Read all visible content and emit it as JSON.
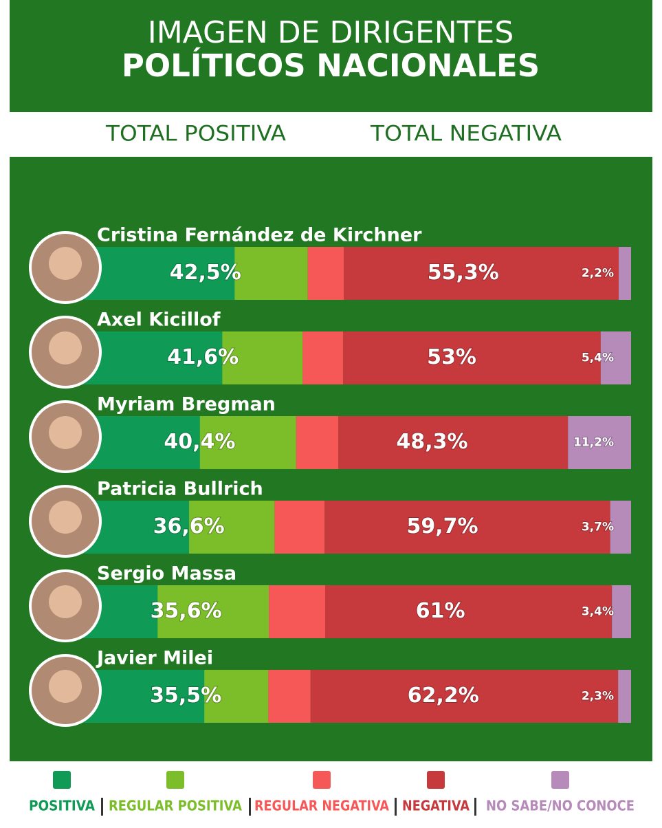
{
  "chart_data": {
    "type": "stacked-bar-horizontal",
    "title": "IMAGEN DE DIRIGENTES",
    "subtitle": "POLÍTICOS NACIONALES",
    "headers": [
      "TOTAL POSITIVA",
      "TOTAL NEGATIVA"
    ],
    "categories": [
      "Cristina Fernández de Kirchner",
      "Axel Kicillof",
      "Myriam Bregman",
      "Patricia Bullrich",
      "Sergio Massa",
      "Javier Milei"
    ],
    "series": [
      {
        "name": "POSITIVA",
        "color": "#0f9a55",
        "values": [
          29.5,
          27.3,
          23.3,
          21.4,
          15.8,
          24.1
        ]
      },
      {
        "name": "REGULAR POSITIVA",
        "color": "#7cbd2a",
        "values": [
          13,
          14.3,
          17.1,
          15.2,
          19.8,
          11.4
        ]
      },
      {
        "name": "REGULAR NEGATIVA",
        "color": "#f65858",
        "values": [
          6.4,
          7.2,
          7.5,
          8.9,
          10,
          7.5
        ]
      },
      {
        "name": "NEGATIVA",
        "color": "#c63a3e",
        "values": [
          48.9,
          45.8,
          40.8,
          50.8,
          51,
          54.7
        ]
      },
      {
        "name": "NO SABE/NO CONOCE",
        "color": "#b68bb9",
        "values": [
          2.2,
          5.4,
          11.2,
          3.7,
          3.4,
          2.3
        ],
        "value_labels": [
          "2,2%",
          "5,4%",
          "11,2%",
          "3,7%",
          "3,4%",
          "2,3%"
        ]
      }
    ],
    "total_positiva": {
      "values": [
        42.5,
        41.6,
        40.4,
        36.6,
        35.6,
        35.5
      ],
      "value_labels": [
        "42,5%",
        "41,6%",
        "40,4%",
        "36,6%",
        "35,6%",
        "35,5%"
      ]
    },
    "total_negativa": {
      "values": [
        55.3,
        53,
        48.3,
        59.7,
        61,
        62.2
      ],
      "value_labels": [
        "55,3%",
        "53%",
        "48,3%",
        "59,7%",
        "61%",
        "62,2%"
      ]
    }
  }
}
